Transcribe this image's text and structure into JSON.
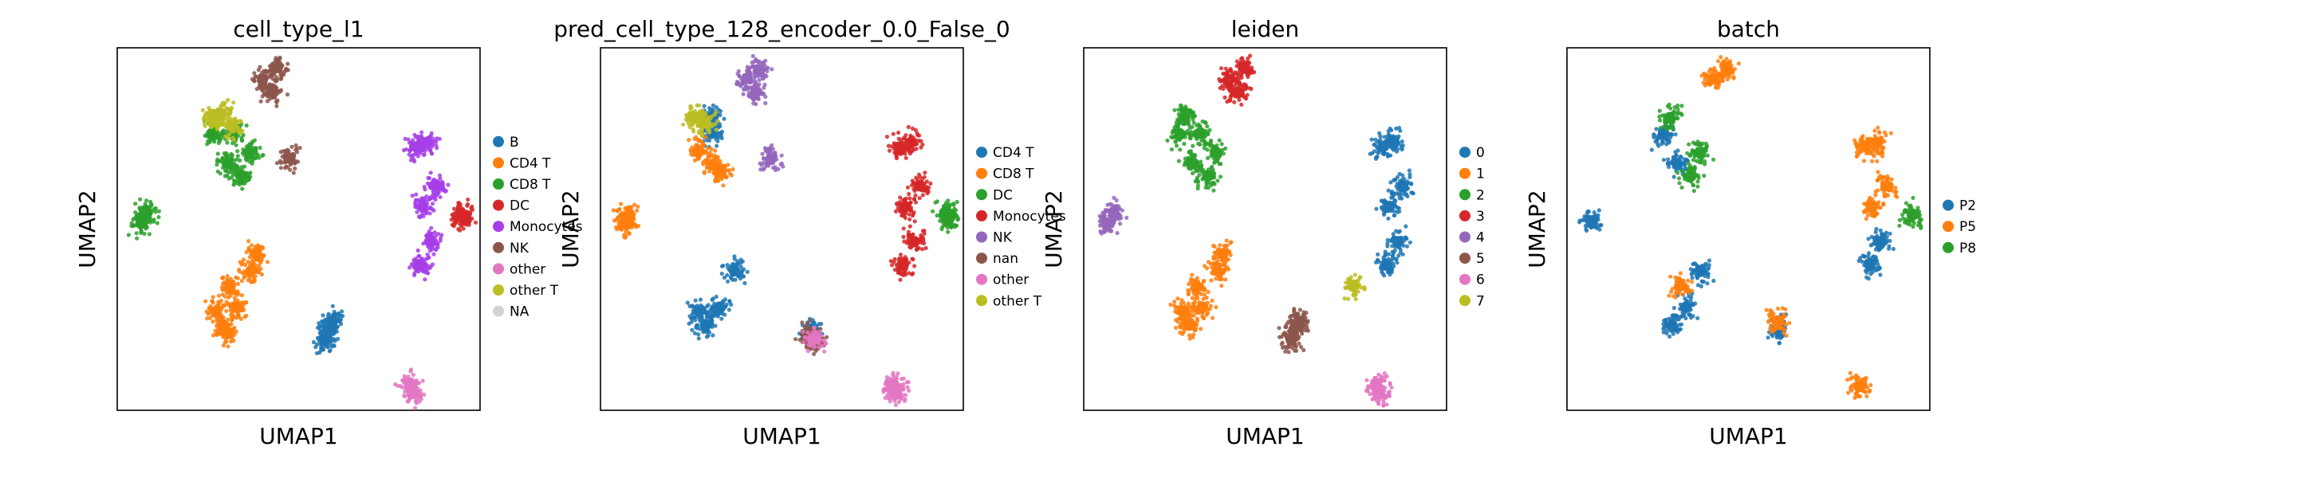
{
  "chart_data": [
    {
      "type": "scatter",
      "title": "cell_type_l1",
      "xlabel": "UMAP1",
      "ylabel": "UMAP2",
      "grid": false,
      "legend_placement": "right",
      "series": [
        {
          "name": "B",
          "color": "#1f77b4",
          "x": [
            6.3,
            6.7,
            6.1
          ],
          "y": [
            -7.2,
            -6.6,
            -8.0
          ]
        },
        {
          "name": "CD4 T",
          "color": "#ff7f0e",
          "x": [
            -2.1,
            -1.0,
            0.2,
            -2.6,
            -1.5,
            0.6,
            -1.8
          ],
          "y": [
            -6.9,
            -5.6,
            -3.0,
            -5.9,
            -4.1,
            -1.8,
            -7.3
          ]
        },
        {
          "name": "CD8 T",
          "color": "#2ca02c",
          "x": [
            -2.8,
            -1.7,
            0.1,
            -1.2,
            -0.6,
            -8.6,
            -8.1
          ],
          "y": [
            6.8,
            4.7,
            5.5,
            6.9,
            3.8,
            0.4,
            1.2
          ]
        },
        {
          "name": "DC",
          "color": "#d62728",
          "x": [
            16.9,
            17.3
          ],
          "y": [
            1.1,
            0.7
          ]
        },
        {
          "name": "Monocytes",
          "color": "#a63ee8",
          "x": [
            13.4,
            14.3,
            15.0,
            13.9,
            14.6,
            13.7
          ],
          "y": [
            5.9,
            6.2,
            3.1,
            1.6,
            -0.9,
            -2.6
          ]
        },
        {
          "name": "NK",
          "color": "#8c564b",
          "x": [
            1.1,
            2.3,
            1.9,
            3.2
          ],
          "y": [
            10.7,
            11.6,
            9.8,
            5.1
          ]
        },
        {
          "name": "other",
          "color": "#e377c2",
          "x": [
            12.9,
            13.1
          ],
          "y": [
            -11.1,
            -11.8
          ]
        },
        {
          "name": "other T",
          "color": "#bcbd22",
          "x": [
            -2.9,
            -2.2,
            -1.4
          ],
          "y": [
            7.9,
            8.3,
            7.4
          ]
        },
        {
          "name": "NA",
          "color": "#d3d3d3",
          "x": [],
          "y": []
        }
      ]
    },
    {
      "type": "scatter",
      "title": "pred_cell_type_128_encoder_0.0_False_0",
      "xlabel": "UMAP1",
      "ylabel": "UMAP2",
      "grid": false,
      "legend_placement": "right",
      "series": [
        {
          "name": "CD4 T",
          "color": "#1f77b4",
          "x": [
            -2.1,
            -1.0,
            0.2,
            -2.6,
            -1.5,
            6.4,
            -1.6
          ],
          "y": [
            -6.9,
            -5.6,
            -3.0,
            -5.9,
            8.1,
            -7.2,
            6.9
          ]
        },
        {
          "name": "CD8 T",
          "color": "#ff7f0e",
          "x": [
            -2.7,
            -1.6,
            -0.9,
            -8.5,
            -8.2
          ],
          "y": [
            5.6,
            4.6,
            4.1,
            0.4,
            1.1
          ]
        },
        {
          "name": "DC",
          "color": "#2ca02c",
          "x": [
            17.2,
            17.4
          ],
          "y": [
            1.2,
            0.8
          ]
        },
        {
          "name": "Monocytes",
          "color": "#d62728",
          "x": [
            13.4,
            14.3,
            15.0,
            13.9,
            14.6,
            13.7
          ],
          "y": [
            5.9,
            6.2,
            3.1,
            1.6,
            -0.9,
            -2.6
          ]
        },
        {
          "name": "NK",
          "color": "#9467bd",
          "x": [
            1.2,
            2.2,
            1.9,
            3.1
          ],
          "y": [
            10.8,
            11.4,
            9.8,
            5.0
          ]
        },
        {
          "name": "nan",
          "color": "#8c564b",
          "x": [
            6.2,
            6.6
          ],
          "y": [
            -7.6,
            -8.1
          ]
        },
        {
          "name": "other",
          "color": "#e377c2",
          "x": [
            6.5,
            12.9,
            13.1
          ],
          "y": [
            -7.9,
            -11.1,
            -11.8
          ]
        },
        {
          "name": "other T",
          "color": "#bcbd22",
          "x": [
            -2.9,
            -2.1
          ],
          "y": [
            8.0,
            7.6
          ]
        }
      ]
    },
    {
      "type": "scatter",
      "title": "leiden",
      "xlabel": "UMAP1",
      "ylabel": "UMAP2",
      "grid": false,
      "legend_placement": "right",
      "series": [
        {
          "name": "0",
          "color": "#1f77b4",
          "x": [
            13.4,
            14.3,
            15.0,
            13.9,
            14.6,
            13.7
          ],
          "y": [
            5.9,
            6.2,
            3.1,
            1.6,
            -0.9,
            -2.6
          ]
        },
        {
          "name": "1",
          "color": "#ff7f0e",
          "x": [
            -2.1,
            -1.0,
            0.2,
            -2.6,
            -1.5,
            0.6
          ],
          "y": [
            -6.9,
            -5.6,
            -3.0,
            -5.9,
            -4.1,
            -1.8
          ]
        },
        {
          "name": "2",
          "color": "#2ca02c",
          "x": [
            -2.8,
            -1.7,
            0.1,
            -1.2,
            -0.6,
            -2.4
          ],
          "y": [
            6.8,
            4.7,
            5.5,
            6.9,
            3.8,
            8.1
          ]
        },
        {
          "name": "3",
          "color": "#d62728",
          "x": [
            1.1,
            2.3,
            1.9
          ],
          "y": [
            10.7,
            11.6,
            9.8
          ]
        },
        {
          "name": "4",
          "color": "#9467bd",
          "x": [
            -8.6,
            -8.1
          ],
          "y": [
            0.4,
            1.2
          ]
        },
        {
          "name": "5",
          "color": "#8c564b",
          "x": [
            6.3,
            6.7,
            6.1
          ],
          "y": [
            -7.2,
            -6.6,
            -8.0
          ]
        },
        {
          "name": "6",
          "color": "#e377c2",
          "x": [
            12.9,
            13.1
          ],
          "y": [
            -11.1,
            -11.8
          ]
        },
        {
          "name": "7",
          "color": "#bcbd22",
          "x": [
            11.0
          ],
          "y": [
            -4.1
          ]
        }
      ]
    },
    {
      "type": "scatter",
      "title": "batch",
      "xlabel": "UMAP1",
      "ylabel": "UMAP2",
      "grid": false,
      "legend_placement": "right",
      "series": [
        {
          "name": "P2",
          "color": "#1f77b4",
          "x": [
            -2.1,
            -1.0,
            0.2,
            -2.8,
            -1.7,
            13.7,
            14.6,
            -8.5,
            6.4
          ],
          "y": [
            -6.9,
            -5.6,
            -3.0,
            6.8,
            4.7,
            -2.6,
            -0.9,
            0.6,
            -7.2
          ]
        },
        {
          "name": "P5",
          "color": "#ff7f0e",
          "x": [
            13.4,
            14.3,
            15.0,
            13.9,
            1.2,
            2.2,
            -1.5,
            6.3,
            12.9
          ],
          "y": [
            5.9,
            6.2,
            3.1,
            1.6,
            10.8,
            11.4,
            -4.1,
            -6.6,
            -11.3
          ]
        },
        {
          "name": "P8",
          "color": "#2ca02c",
          "x": [
            -0.6,
            0.1,
            17.1,
            -2.3
          ],
          "y": [
            3.8,
            5.5,
            1.0,
            8.0
          ]
        }
      ]
    }
  ]
}
